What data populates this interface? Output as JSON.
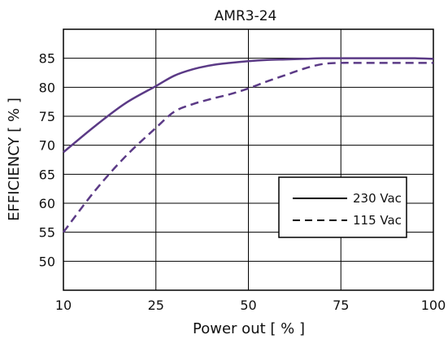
{
  "chart_data": {
    "type": "line",
    "title": "AMR3-24",
    "xlabel": "Power  out [ % ]",
    "ylabel": "EFFICIENCY [ % ]",
    "x_ticks": [
      10,
      25,
      50,
      75,
      100
    ],
    "y_ticks": [
      50,
      55,
      60,
      65,
      70,
      75,
      80,
      85
    ],
    "ylim": [
      45,
      90
    ],
    "grid": true,
    "legend_position": "inside-lower-right",
    "series": [
      {
        "name": "230 Vac",
        "style": "solid",
        "color": "#5b3a86",
        "x": [
          10,
          15,
          20,
          25,
          30,
          35,
          40,
          45,
          50,
          55,
          60,
          65,
          70,
          75,
          80,
          85,
          90,
          95,
          100
        ],
        "y": [
          68.8,
          73.2,
          77.2,
          80.2,
          82.0,
          83.1,
          83.8,
          84.2,
          84.5,
          84.7,
          84.8,
          84.9,
          85.0,
          85.0,
          85.0,
          85.0,
          85.0,
          85.0,
          84.9
        ]
      },
      {
        "name": "115 Vac",
        "style": "dashed",
        "color": "#5b3a86",
        "x": [
          10,
          15,
          20,
          25,
          30,
          35,
          40,
          45,
          50,
          55,
          60,
          65,
          70,
          75,
          80,
          85,
          90,
          95,
          100
        ],
        "y": [
          55.0,
          62.0,
          68.0,
          73.0,
          75.8,
          77.1,
          78.0,
          78.8,
          79.8,
          81.0,
          82.1,
          83.2,
          84.0,
          84.2,
          84.2,
          84.2,
          84.2,
          84.2,
          84.2
        ]
      }
    ]
  }
}
